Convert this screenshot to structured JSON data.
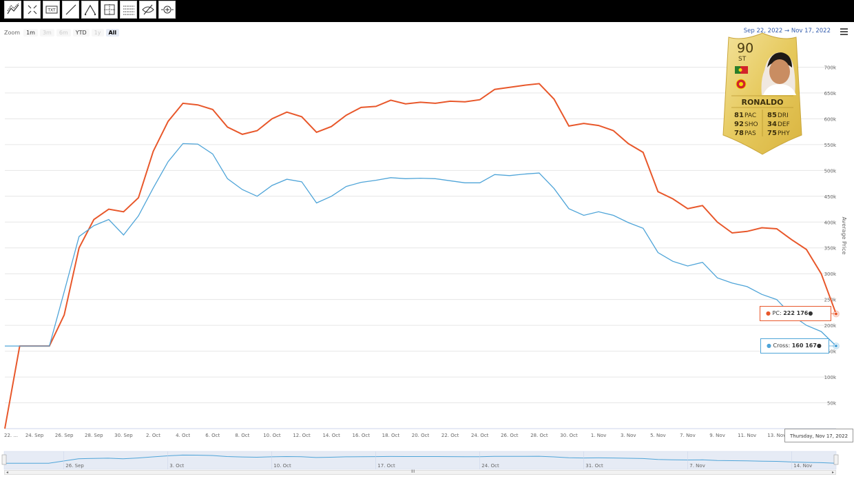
{
  "toolbar": {
    "tools": [
      "trend-line-icon",
      "fullscreen-icon",
      "text-annotation-icon",
      "line-icon",
      "measure-icon",
      "crosshair-icon",
      "grid-icon",
      "hide-icon",
      "zoom-cursor-icon"
    ],
    "text_tool_label": "TXT"
  },
  "range_selector": {
    "zoom_label": "Zoom",
    "buttons": [
      {
        "label": "1m",
        "state": "normal"
      },
      {
        "label": "3m",
        "state": "disabled"
      },
      {
        "label": "6m",
        "state": "disabled"
      },
      {
        "label": "YTD",
        "state": "normal"
      },
      {
        "label": "1y",
        "state": "disabled"
      },
      {
        "label": "All",
        "state": "active"
      }
    ],
    "from_date": "Sep 22, 2022",
    "separator": "→",
    "to_date": "Nov 17, 2022"
  },
  "menu": {
    "icon": "hamburger-menu-icon"
  },
  "card": {
    "rating": "90",
    "position": "ST",
    "name": "RONALDO",
    "stats": [
      {
        "value": "81",
        "label": "PAC"
      },
      {
        "value": "85",
        "label": "DRI"
      },
      {
        "value": "92",
        "label": "SHO"
      },
      {
        "value": "34",
        "label": "DEF"
      },
      {
        "value": "78",
        "label": "PAS"
      },
      {
        "value": "75",
        "label": "PHY"
      }
    ],
    "nation_icon": "portugal-flag-icon",
    "club_icon": "manchester-united-badge-icon"
  },
  "tooltips": {
    "pc_label": "PC: ",
    "pc_value": "222 176",
    "cross_label": "Cross: ",
    "cross_value": "160 167",
    "date": "Thursday, Nov 17, 2022"
  },
  "chart_data": {
    "type": "line",
    "xlabel": "",
    "ylabel": "Average Price",
    "x": [
      "Sep 22",
      "Sep 23",
      "Sep 24",
      "Sep 25",
      "Sep 26",
      "Sep 27",
      "Sep 28",
      "Sep 29",
      "Sep 30",
      "Oct 1",
      "Oct 2",
      "Oct 3",
      "Oct 4",
      "Oct 5",
      "Oct 6",
      "Oct 7",
      "Oct 8",
      "Oct 9",
      "Oct 10",
      "Oct 11",
      "Oct 12",
      "Oct 13",
      "Oct 14",
      "Oct 15",
      "Oct 16",
      "Oct 17",
      "Oct 18",
      "Oct 19",
      "Oct 20",
      "Oct 21",
      "Oct 22",
      "Oct 23",
      "Oct 24",
      "Oct 25",
      "Oct 26",
      "Oct 27",
      "Oct 28",
      "Oct 29",
      "Oct 30",
      "Oct 31",
      "Nov 1",
      "Nov 2",
      "Nov 3",
      "Nov 4",
      "Nov 5",
      "Nov 6",
      "Nov 7",
      "Nov 8",
      "Nov 9",
      "Nov 10",
      "Nov 11",
      "Nov 12",
      "Nov 13",
      "Nov 14",
      "Nov 15",
      "Nov 16",
      "Nov 17"
    ],
    "series": [
      {
        "name": "PC",
        "color": "#e8572a",
        "values": [
          0,
          160000,
          160000,
          160000,
          220000,
          350000,
          405000,
          425000,
          420000,
          447000,
          537000,
          595000,
          630000,
          627000,
          618000,
          584000,
          570000,
          577000,
          600000,
          613000,
          604000,
          574000,
          585000,
          607000,
          622000,
          624000,
          636000,
          629000,
          632000,
          630000,
          634000,
          633000,
          637000,
          657000,
          661000,
          665000,
          668000,
          638000,
          586000,
          591000,
          587000,
          577000,
          552000,
          535000,
          459000,
          445000,
          426000,
          432000,
          400000,
          379000,
          382000,
          389000,
          387000,
          366000,
          347000,
          300000,
          222176
        ]
      },
      {
        "name": "Cross",
        "color": "#4ea4d8",
        "values": [
          160000,
          160000,
          160000,
          160000,
          265000,
          372000,
          393000,
          405000,
          375000,
          412000,
          466000,
          517000,
          552000,
          551000,
          532000,
          484000,
          463000,
          450000,
          471000,
          483000,
          478000,
          437000,
          450000,
          469000,
          477000,
          481000,
          486000,
          484000,
          485000,
          484000,
          480000,
          476000,
          476000,
          492000,
          490000,
          493000,
          495000,
          465000,
          426000,
          413000,
          420000,
          413000,
          399000,
          388000,
          341000,
          324000,
          315000,
          322000,
          292000,
          282000,
          275000,
          260000,
          250000,
          220000,
          200000,
          188000,
          160167
        ]
      }
    ],
    "x_ticks": [
      "22. ...",
      "24. Sep",
      "26. Sep",
      "28. Sep",
      "30. Sep",
      "2. Oct",
      "4. Oct",
      "6. Oct",
      "8. Oct",
      "10. Oct",
      "12. Oct",
      "14. Oct",
      "16. Oct",
      "18. Oct",
      "20. Oct",
      "22. Oct",
      "24. Oct",
      "26. Oct",
      "28. Oct",
      "30. Oct",
      "1. Nov",
      "3. Nov",
      "5. Nov",
      "7. Nov",
      "9. Nov",
      "11. Nov",
      "13. Nov"
    ],
    "y_ticks": [
      {
        "value": 50000,
        "label": "50k"
      },
      {
        "value": 100000,
        "label": "100k"
      },
      {
        "value": 150000,
        "label": "150k"
      },
      {
        "value": 200000,
        "label": "200k"
      },
      {
        "value": 250000,
        "label": "250k"
      },
      {
        "value": 300000,
        "label": "300k"
      },
      {
        "value": 350000,
        "label": "350k"
      },
      {
        "value": 400000,
        "label": "400k"
      },
      {
        "value": 450000,
        "label": "450k"
      },
      {
        "value": 500000,
        "label": "500k"
      },
      {
        "value": 550000,
        "label": "550k"
      },
      {
        "value": 600000,
        "label": "600k"
      },
      {
        "value": 650000,
        "label": "650k"
      },
      {
        "value": 700000,
        "label": "700k"
      }
    ],
    "ylim": [
      0,
      750000
    ],
    "grid": true,
    "y_axis_side": "right",
    "navigator_ticks": [
      "26. Sep",
      "3. Oct",
      "10. Oct",
      "17. Oct",
      "24. Oct",
      "31. Oct",
      "7. Nov",
      "14. Nov"
    ],
    "scrollbar_grip": "III"
  }
}
